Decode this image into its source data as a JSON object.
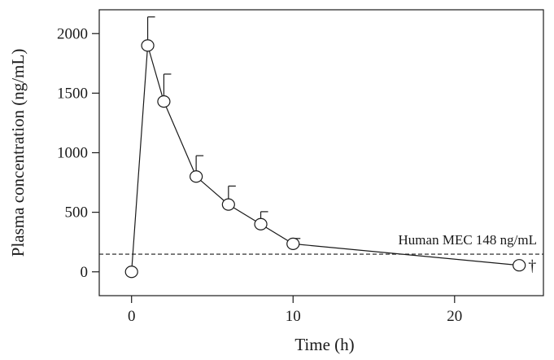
{
  "chart_data": {
    "type": "line",
    "title": "",
    "xlabel": "Time (h)",
    "ylabel": "Plasma concentration (ng/mL)",
    "xlim": [
      -2,
      25.5
    ],
    "ylim": [
      -200,
      2200
    ],
    "x_ticks": [
      0,
      10,
      20
    ],
    "y_ticks": [
      0,
      500,
      1000,
      1500,
      2000
    ],
    "grid": false,
    "legend": "none",
    "series": [
      {
        "x": [
          0,
          1,
          2,
          4,
          6,
          8,
          10,
          24
        ],
        "y": [
          0,
          1900,
          1430,
          800,
          565,
          400,
          235,
          55
        ],
        "error_upper": [
          0,
          240,
          230,
          175,
          155,
          105,
          45,
          0
        ],
        "marker": "open-circle",
        "line": "solid"
      }
    ],
    "reference_line": {
      "y": 148,
      "style": "dashed",
      "label": "Human MEC 148 ng/mL"
    },
    "point_annotation": {
      "x": 24,
      "y": 55,
      "symbol": "†"
    },
    "colors": {
      "line": "#1a1a1a",
      "marker_fill": "#ffffff"
    }
  }
}
